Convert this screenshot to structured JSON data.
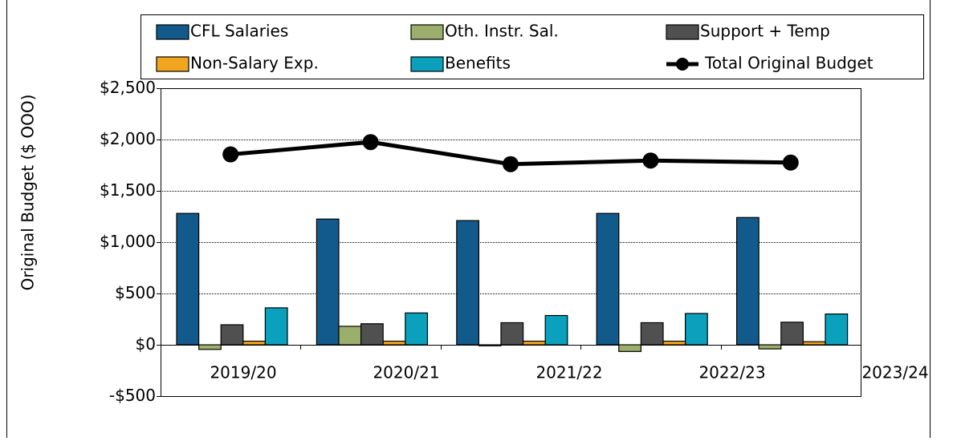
{
  "chart_data": {
    "type": "bar",
    "y_label": "Original Budget ($ OOO)",
    "categories": [
      "2019/20",
      "2020/21",
      "2021/22",
      "2022/23",
      "2023/24"
    ],
    "series": [
      {
        "name": "CFL Salaries",
        "color": "#12598c",
        "values": [
          1280,
          1225,
          1210,
          1280,
          1240
        ]
      },
      {
        "name": "Oth. Instr. Sal.",
        "color": "#9cae6c",
        "values": [
          -45,
          180,
          -10,
          -65,
          -40
        ]
      },
      {
        "name": "Support + Temp",
        "color": "#505050",
        "values": [
          195,
          205,
          215,
          215,
          220
        ]
      },
      {
        "name": "Non-Salary Exp.",
        "color": "#f2a51f",
        "values": [
          35,
          35,
          35,
          35,
          30
        ]
      },
      {
        "name": "Benefits",
        "color": "#0ba1bc",
        "values": [
          360,
          310,
          285,
          305,
          300
        ]
      },
      {
        "name": "Total Original Budget",
        "type": "line",
        "color": "#000000",
        "values": [
          1855,
          1975,
          1760,
          1795,
          1775
        ]
      }
    ],
    "ylim": [
      -500,
      2500
    ],
    "yticks": [
      {
        "value": -500,
        "label": "-$500"
      },
      {
        "value": 0,
        "label": "$0"
      },
      {
        "value": 500,
        "label": "$500"
      },
      {
        "value": 1000,
        "label": "$1,000"
      },
      {
        "value": 1500,
        "label": "$1,500"
      },
      {
        "value": 2000,
        "label": "$2,000"
      },
      {
        "value": 2500,
        "label": "$2,500"
      }
    ],
    "grid": true,
    "legend": "top"
  }
}
